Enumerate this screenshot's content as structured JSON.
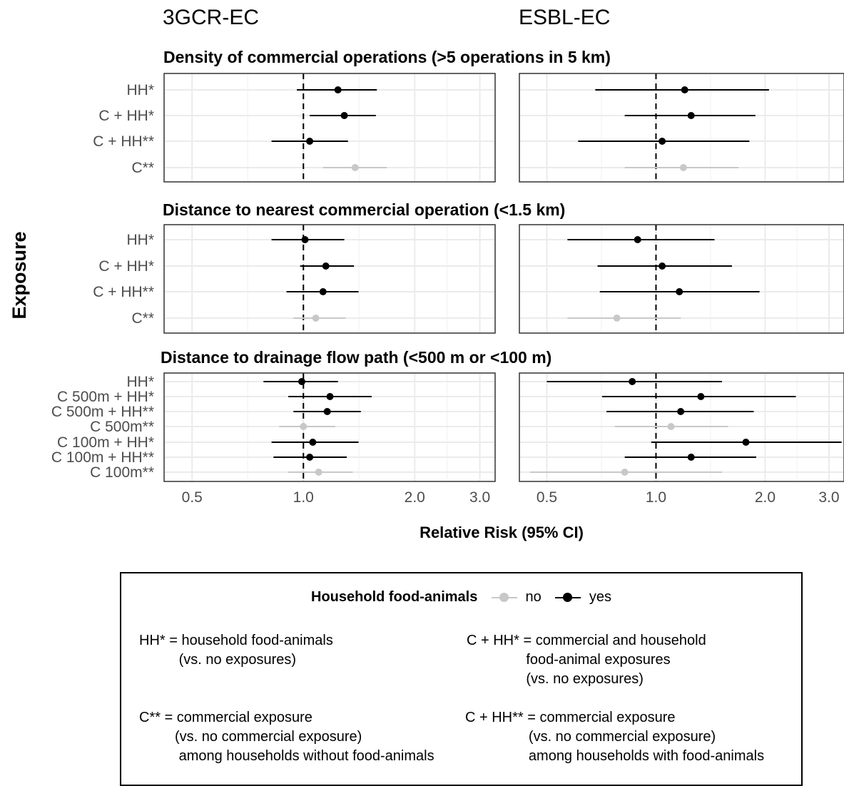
{
  "chart_data": {
    "type": "forest",
    "ylabel": "Exposure",
    "xlabel": "Relative Risk (95% CI)",
    "x_scale": "log",
    "x_ticks": [
      0.5,
      1.0,
      2.0,
      3.0
    ],
    "x_tick_labels": [
      "0.5",
      "1.0",
      "2.0",
      "3.0"
    ],
    "reference_line": 1.0,
    "columns": [
      {
        "title": "3GCR-EC",
        "xlim": [
          0.42,
          3.3
        ]
      },
      {
        "title": "ESBL-EC",
        "xlim": [
          0.42,
          3.3
        ]
      }
    ],
    "sections": [
      {
        "title": "Density of commercial operations (>5 operations in 5 km)",
        "rows": [
          {
            "label": "HH*",
            "group": "yes",
            "cells": [
              {
                "rr": 1.24,
                "lo": 0.96,
                "hi": 1.58
              },
              {
                "rr": 1.2,
                "lo": 0.68,
                "hi": 2.05
              }
            ]
          },
          {
            "label": "C + HH*",
            "group": "yes",
            "cells": [
              {
                "rr": 1.29,
                "lo": 1.04,
                "hi": 1.57
              },
              {
                "rr": 1.25,
                "lo": 0.82,
                "hi": 1.88
              }
            ]
          },
          {
            "label": "C + HH**",
            "group": "yes",
            "cells": [
              {
                "rr": 1.04,
                "lo": 0.82,
                "hi": 1.32
              },
              {
                "rr": 1.04,
                "lo": 0.61,
                "hi": 1.81
              }
            ]
          },
          {
            "label": "C**",
            "group": "no",
            "cells": [
              {
                "rr": 1.38,
                "lo": 1.13,
                "hi": 1.68
              },
              {
                "rr": 1.19,
                "lo": 0.82,
                "hi": 1.69
              }
            ]
          }
        ]
      },
      {
        "title": "Distance to nearest commercial operation (<1.5 km)",
        "rows": [
          {
            "label": "HH*",
            "group": "yes",
            "cells": [
              {
                "rr": 1.01,
                "lo": 0.82,
                "hi": 1.29
              },
              {
                "rr": 0.89,
                "lo": 0.57,
                "hi": 1.45
              }
            ]
          },
          {
            "label": "C + HH*",
            "group": "yes",
            "cells": [
              {
                "rr": 1.15,
                "lo": 0.98,
                "hi": 1.37
              },
              {
                "rr": 1.04,
                "lo": 0.69,
                "hi": 1.62
              }
            ]
          },
          {
            "label": "C + HH**",
            "group": "yes",
            "cells": [
              {
                "rr": 1.13,
                "lo": 0.9,
                "hi": 1.41
              },
              {
                "rr": 1.16,
                "lo": 0.7,
                "hi": 1.93
              }
            ]
          },
          {
            "label": "C**",
            "group": "no",
            "cells": [
              {
                "rr": 1.08,
                "lo": 0.94,
                "hi": 1.3
              },
              {
                "rr": 0.78,
                "lo": 0.57,
                "hi": 1.17
              }
            ]
          }
        ]
      },
      {
        "title": "Distance to drainage flow path (<500 m or <100 m)",
        "rows": [
          {
            "label": "HH*",
            "group": "yes",
            "cells": [
              {
                "rr": 0.99,
                "lo": 0.78,
                "hi": 1.24
              },
              {
                "rr": 0.86,
                "lo": 0.5,
                "hi": 1.52
              }
            ]
          },
          {
            "label": "C 500m + HH*",
            "group": "yes",
            "cells": [
              {
                "rr": 1.18,
                "lo": 0.91,
                "hi": 1.53
              },
              {
                "rr": 1.33,
                "lo": 0.71,
                "hi": 2.43
              }
            ]
          },
          {
            "label": "C 500m + HH**",
            "group": "yes",
            "cells": [
              {
                "rr": 1.16,
                "lo": 0.94,
                "hi": 1.43
              },
              {
                "rr": 1.17,
                "lo": 0.73,
                "hi": 1.86
              }
            ]
          },
          {
            "label": "C 500m**",
            "group": "no",
            "cells": [
              {
                "rr": 1.0,
                "lo": 0.86,
                "hi": 1.22
              },
              {
                "rr": 1.1,
                "lo": 0.77,
                "hi": 1.58
              }
            ]
          },
          {
            "label": "C 100m + HH*",
            "group": "yes",
            "cells": [
              {
                "rr": 1.06,
                "lo": 0.82,
                "hi": 1.41
              },
              {
                "rr": 1.77,
                "lo": 0.97,
                "hi": 3.25
              }
            ]
          },
          {
            "label": "C 100m + HH**",
            "group": "yes",
            "cells": [
              {
                "rr": 1.04,
                "lo": 0.83,
                "hi": 1.31
              },
              {
                "rr": 1.25,
                "lo": 0.82,
                "hi": 1.89
              }
            ]
          },
          {
            "label": "C 100m**",
            "group": "no",
            "cells": [
              {
                "rr": 1.1,
                "lo": 0.91,
                "hi": 1.36
              },
              {
                "rr": 0.82,
                "lo": 0.45,
                "hi": 1.52
              }
            ]
          }
        ]
      }
    ],
    "legend": {
      "title": "Household food-animals",
      "items": [
        {
          "label": "no",
          "color": "#c8c8c8"
        },
        {
          "label": "yes",
          "color": "#000000"
        }
      ]
    }
  },
  "notes": [
    "HH* = household food-animals\n          (vs. no exposures)",
    "C + HH* = commercial and household\n               food-animal exposures\n               (vs. no exposures)",
    "C** = commercial exposure\n         (vs. no commercial exposure)\n          among households without food-animals",
    "C + HH** = commercial exposure\n                (vs. no commercial exposure)\n                among households with food-animals"
  ],
  "colors": {
    "yes": "#000000",
    "no": "#c8c8c8",
    "grid": "#ebebeb",
    "panel_border": "#333333"
  }
}
